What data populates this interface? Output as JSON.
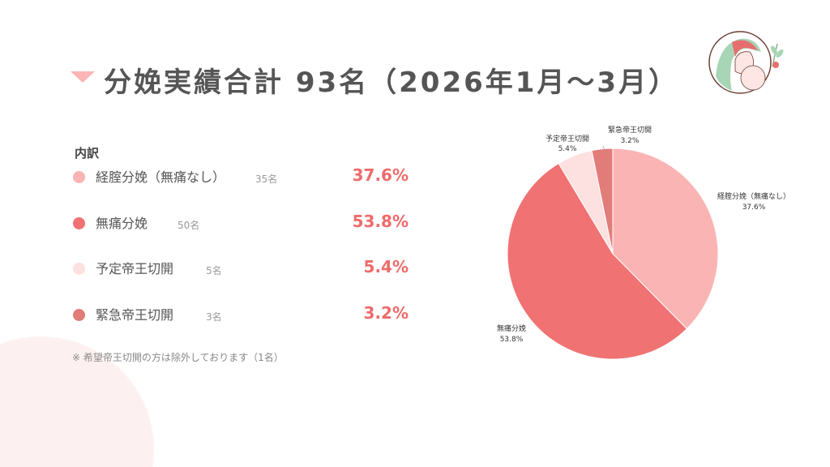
{
  "title": "分娩実績合計 93名（2026年1月～3月）",
  "breakdown_heading": "内訳",
  "note": "※ 希望帝王切開の方は除外しております（1名）",
  "chart_data": {
    "type": "pie",
    "start": "top",
    "direction": "clockwise",
    "categories": [
      "経腟分娩（無痛なし）",
      "無痛分娩",
      "予定帝王切開",
      "緊急帝王切開"
    ],
    "counts": [
      "35名",
      "50名",
      "5名",
      "3名"
    ],
    "values": [
      37.6,
      53.8,
      5.4,
      3.2
    ],
    "labels": [
      "37.6%",
      "53.8%",
      "5.4%",
      "3.2%"
    ],
    "colors": [
      "#fbb4b4",
      "#f07272",
      "#fde0e0",
      "#e27c79"
    ]
  }
}
